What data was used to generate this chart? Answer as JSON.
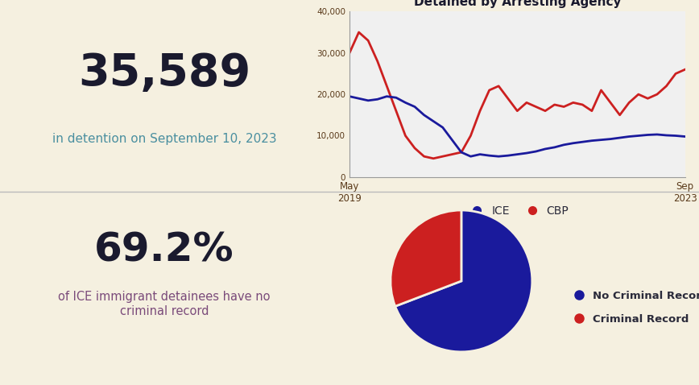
{
  "background_color": "#f5f0e0",
  "stat1_value": "35,589",
  "stat1_label": "in detention on September 10, 2023",
  "stat1_value_color": "#1a1a2e",
  "stat1_label_color": "#4a8fa0",
  "stat2_value": "69.2%",
  "stat2_label": "of ICE immigrant detainees have no\ncriminal record",
  "stat2_value_color": "#1a1a2e",
  "stat2_label_color": "#7a4a7a",
  "chart_title": "Detained by Arresting Agency",
  "chart_title_color": "#1a1a2e",
  "chart_bg": "#f0f0f0",
  "ice_color": "#1a1a9c",
  "cbp_color": "#cc2020",
  "ice_label": "ICE",
  "cbp_label": "CBP",
  "pie_no_criminal_color": "#1a1a9c",
  "pie_criminal_color": "#cc2020",
  "pie_no_criminal_pct": 69.2,
  "pie_criminal_pct": 30.8,
  "pie_no_criminal_label": "No Criminal Record",
  "pie_criminal_label": "Criminal Record",
  "xaxis_start_label": "May\n2019",
  "xaxis_end_label": "Sep\n2023",
  "yaxis_ticks": [
    0,
    10000,
    20000,
    30000,
    40000
  ],
  "yaxis_tick_labels": [
    "0",
    "10,000",
    "20,000",
    "30,000",
    "40,000"
  ],
  "divider_color": "#bbbbbb",
  "legend_text_color": "#2a2a3a",
  "ice_data": [
    19500,
    19000,
    18500,
    18800,
    19500,
    19200,
    18000,
    17000,
    15000,
    13500,
    12000,
    9000,
    6000,
    5000,
    5500,
    5200,
    5000,
    5200,
    5500,
    5800,
    6200,
    6800,
    7200,
    7800,
    8200,
    8500,
    8800,
    9000,
    9200,
    9500,
    9800,
    10000,
    10200,
    10300,
    10100,
    10000,
    9800
  ],
  "cbp_data": [
    30000,
    35000,
    33000,
    28000,
    22000,
    16000,
    10000,
    7000,
    5000,
    4500,
    5000,
    5500,
    6000,
    10000,
    16000,
    21000,
    22000,
    19000,
    16000,
    18000,
    17000,
    16000,
    17500,
    17000,
    18000,
    17500,
    16000,
    21000,
    18000,
    15000,
    18000,
    20000,
    19000,
    20000,
    22000,
    25000,
    26000
  ]
}
